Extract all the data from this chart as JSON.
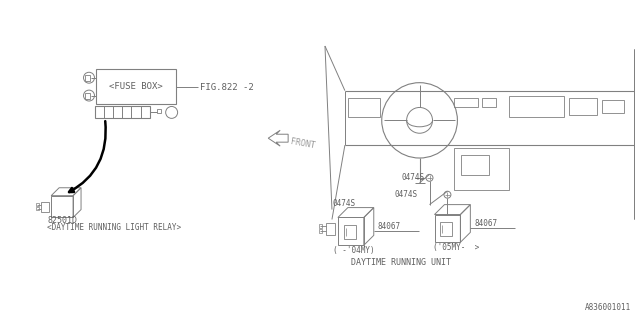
{
  "bg_color": "#ffffff",
  "line_color": "#808080",
  "text_color": "#606060",
  "diagram_id": "A836001011",
  "fuse_box_label": "<FUSE BOX>",
  "fuse_box_ref": "FIG.822 -2",
  "relay_part": "82501D",
  "relay_label": "<DAYTIME RUNNING LIGHT RELAY>",
  "connector_part": "0474S",
  "unit_part1": "84067",
  "unit_part2": "84067",
  "unit_label": "DAYTIME RUNNING UNIT",
  "unit_year1": "( -'04MY)",
  "unit_year2": "('05MY-  >",
  "front_label": "FRONT"
}
